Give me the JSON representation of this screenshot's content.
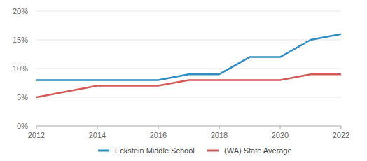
{
  "chart_data": {
    "type": "line",
    "x": [
      2012,
      2013,
      2014,
      2015,
      2016,
      2017,
      2018,
      2019,
      2020,
      2021,
      2022
    ],
    "series": [
      {
        "name": "Eckstein Middle School",
        "color": "#2f8dc2",
        "values": [
          8,
          8,
          8,
          8,
          8,
          9,
          9,
          12,
          12,
          15,
          16
        ]
      },
      {
        "name": "(WA) State Average",
        "color": "#d45a57",
        "values": [
          5,
          6,
          7,
          7,
          7,
          8,
          8,
          8,
          8,
          9,
          9
        ]
      }
    ],
    "xlim": [
      2012,
      2022
    ],
    "xticks": [
      2012,
      2014,
      2016,
      2018,
      2020,
      2022
    ],
    "ylim": [
      0,
      20
    ],
    "yticks": [
      {
        "value": 0,
        "label": "0%"
      },
      {
        "value": 5,
        "label": "5%"
      },
      {
        "value": 10,
        "label": "10%"
      },
      {
        "value": 15,
        "label": "15%"
      },
      {
        "value": 20,
        "label": "20%"
      }
    ],
    "grid": true,
    "legend": "bottom"
  }
}
